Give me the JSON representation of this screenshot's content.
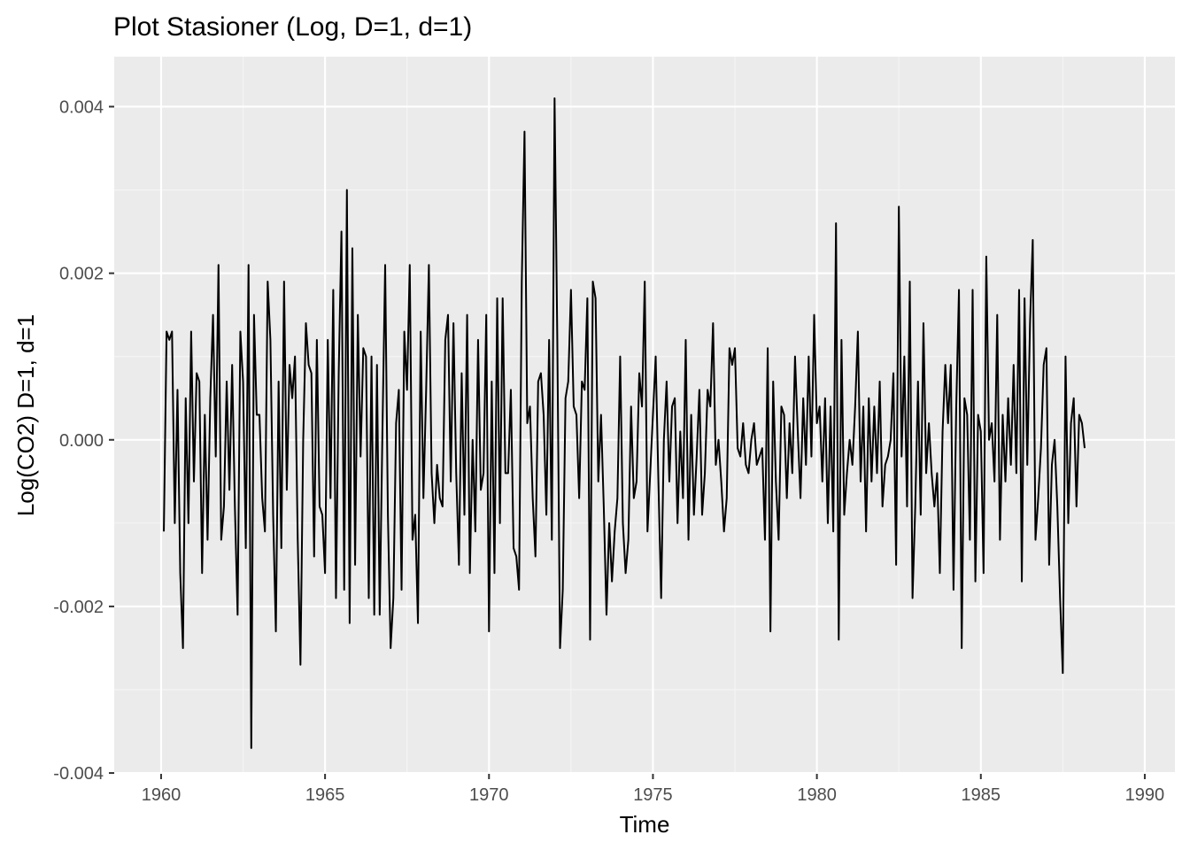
{
  "colors": {
    "panel_background": "#ebebeb",
    "grid_major": "#ffffff",
    "grid_minor": "#f5f5f5",
    "series_line": "#000000",
    "tick_text": "#4d4d4d",
    "tick_mark": "#333333",
    "title_text": "#000000"
  },
  "chart_data": {
    "type": "line",
    "title": "Plot Stasioner (Log, D=1, d=1)",
    "xlabel": "Time",
    "ylabel": "Log(CO2) D=1, d=1",
    "xlim": [
      1958.57,
      1990.92
    ],
    "ylim": [
      -0.00401,
      0.0046
    ],
    "x_ticks": [
      1960,
      1965,
      1970,
      1975,
      1980,
      1985,
      1990
    ],
    "x_tick_labels": [
      "1960",
      "1965",
      "1970",
      "1975",
      "1980",
      "1985",
      "1990"
    ],
    "y_ticks": [
      -0.004,
      -0.002,
      0.0,
      0.002,
      0.004
    ],
    "y_tick_labels": [
      "-0.004",
      "-0.002",
      "0.000",
      "0.002",
      "0.004"
    ],
    "grid": true,
    "legend": "none",
    "x_start": 1960.0833,
    "x_step": 0.083333,
    "series": [
      {
        "values": [
          -0.0011,
          0.0013,
          0.0012,
          0.0013,
          -0.001,
          0.0006,
          -0.0016,
          -0.0025,
          0.0005,
          -0.001,
          0.0013,
          -0.0005,
          0.0008,
          0.0007,
          -0.0016,
          0.0003,
          -0.0012,
          0.0005,
          0.0015,
          -0.0002,
          0.0021,
          -0.0012,
          -0.0008,
          0.0007,
          -0.0006,
          0.0009,
          -0.0008,
          -0.0021,
          0.0013,
          0.0007,
          -0.0013,
          0.0021,
          -0.0037,
          0.0015,
          0.0003,
          0.0003,
          -0.0007,
          -0.0011,
          0.0019,
          0.0012,
          -0.0009,
          -0.0023,
          0.0007,
          -0.0013,
          0.0019,
          -0.0006,
          0.0009,
          0.0005,
          0.001,
          -0.0012,
          -0.0027,
          0.0,
          0.0014,
          0.0009,
          0.0008,
          -0.0014,
          0.0012,
          -0.0008,
          -0.0009,
          -0.0016,
          0.0012,
          -0.0007,
          0.0018,
          -0.0019,
          0.0008,
          0.0025,
          -0.0018,
          0.003,
          -0.0022,
          0.0023,
          -0.0015,
          0.0015,
          -0.0002,
          0.0011,
          0.001,
          -0.0019,
          0.001,
          -0.0021,
          0.0009,
          -0.0021,
          0.0001,
          0.0021,
          -0.0009,
          -0.0025,
          -0.0019,
          0.0002,
          0.0006,
          -0.0018,
          0.0013,
          0.0006,
          0.0021,
          -0.0012,
          -0.0009,
          -0.0022,
          0.0013,
          -0.0007,
          0.0006,
          0.0021,
          -0.0004,
          -0.001,
          -0.0003,
          -0.0007,
          -0.0008,
          0.0012,
          0.0015,
          -0.0005,
          0.0014,
          -0.0004,
          -0.0015,
          0.0008,
          -0.0009,
          0.0015,
          -0.0016,
          0.0,
          -0.0011,
          0.0012,
          -0.0006,
          -0.0004,
          0.0015,
          -0.0023,
          0.0007,
          -0.0016,
          0.0017,
          -0.001,
          0.0017,
          -0.0004,
          -0.0004,
          0.0006,
          -0.0013,
          -0.0014,
          -0.0018,
          0.0019,
          0.0037,
          0.0002,
          0.0004,
          -0.0007,
          -0.0014,
          0.0007,
          0.0008,
          0.0003,
          -0.0009,
          0.0012,
          -0.0012,
          0.0041,
          0.0012,
          -0.0025,
          -0.0018,
          0.0005,
          0.0007,
          0.0018,
          0.0004,
          0.0003,
          -0.0007,
          0.0007,
          0.0006,
          0.0017,
          -0.0024,
          0.0019,
          0.0017,
          -0.0005,
          0.0003,
          -0.0008,
          -0.0021,
          -0.001,
          -0.0017,
          -0.0011,
          -0.0007,
          0.001,
          -0.001,
          -0.0016,
          -0.0012,
          0.0004,
          -0.0007,
          -0.0005,
          0.0008,
          0.0004,
          0.0019,
          -0.0011,
          -0.0004,
          0.0003,
          0.001,
          -0.0005,
          -0.0019,
          0.0,
          0.0007,
          -0.0005,
          0.0004,
          0.0005,
          -0.001,
          0.0001,
          -0.0007,
          0.0012,
          -0.0012,
          0.0003,
          -0.0009,
          -0.0002,
          0.0006,
          -0.0009,
          -0.0004,
          0.0006,
          0.0004,
          0.0014,
          -0.0003,
          0.0,
          -0.0005,
          -0.0011,
          -0.0007,
          0.0011,
          0.0009,
          0.0011,
          -0.0001,
          -0.0002,
          0.0002,
          -0.0003,
          -0.0004,
          0.0,
          0.0002,
          -0.0003,
          -0.0002,
          -0.0001,
          -0.0012,
          0.0011,
          -0.0023,
          0.0007,
          -0.0005,
          -0.0012,
          0.0004,
          0.0003,
          -0.0007,
          0.0002,
          -0.0004,
          0.001,
          0.0001,
          -0.0007,
          0.0005,
          -0.0003,
          0.001,
          -0.0002,
          0.0015,
          0.0002,
          0.0004,
          -0.0005,
          0.0005,
          -0.001,
          0.0004,
          -0.0011,
          0.0026,
          -0.0024,
          0.0012,
          -0.0009,
          -0.0004,
          0.0,
          -0.0003,
          0.0004,
          0.0013,
          -0.0005,
          0.0004,
          -0.0011,
          0.0005,
          -0.0005,
          0.0004,
          -0.0004,
          0.0007,
          -0.0008,
          -0.0003,
          -0.0002,
          0.0,
          0.0008,
          -0.0015,
          0.0028,
          -0.0002,
          0.001,
          -0.0008,
          0.0019,
          -0.0019,
          -0.0008,
          0.0007,
          -0.0009,
          0.0014,
          -0.0004,
          0.0002,
          -0.0004,
          -0.0008,
          -0.0004,
          -0.0016,
          0.0001,
          0.0009,
          0.0002,
          0.0009,
          -0.0018,
          0.0004,
          0.0018,
          -0.0025,
          0.0005,
          0.0003,
          -0.0012,
          0.0018,
          -0.0017,
          0.0003,
          0.0001,
          -0.0016,
          0.0022,
          0.0,
          0.0002,
          -0.0005,
          0.0015,
          -0.0012,
          0.0003,
          -0.0005,
          0.0005,
          -0.0003,
          0.0009,
          -0.0004,
          0.0018,
          -0.0017,
          0.0017,
          -0.0003,
          0.0014,
          0.0024,
          -0.0012,
          -0.0007,
          -0.0001,
          0.0009,
          0.0011,
          -0.0015,
          -0.0003,
          0.0,
          -0.0008,
          -0.0019,
          -0.0028,
          0.001,
          -0.001,
          0.0002,
          0.0005,
          -0.0008,
          0.0003,
          0.0002,
          -0.0001
        ]
      }
    ]
  }
}
